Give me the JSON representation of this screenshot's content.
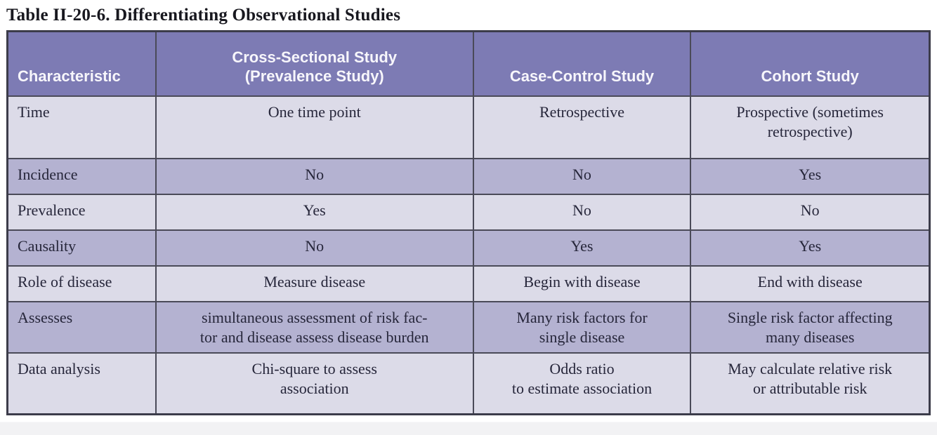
{
  "title": "Table II-20-6. Differentiating Observational Studies",
  "colors": {
    "header_bg": "#7d7bb4",
    "header_text": "#f7f6fb",
    "row_light": "#dcdbe8",
    "row_dark": "#b4b2d1",
    "border": "#4a4a58",
    "body_text": "#26263a"
  },
  "table": {
    "headers": [
      "Characteristic",
      "Cross-Sectional Study\n(Prevalence Study)",
      "Case-Control Study",
      "Cohort Study"
    ],
    "rows": [
      {
        "cells": [
          "Time",
          "One time point",
          "Retrospective",
          "Prospective (sometimes\nretrospective)"
        ]
      },
      {
        "cells": [
          "Incidence",
          "No",
          "No",
          "Yes"
        ]
      },
      {
        "cells": [
          "Prevalence",
          "Yes",
          "No",
          "No"
        ]
      },
      {
        "cells": [
          "Causality",
          "No",
          "Yes",
          "Yes"
        ]
      },
      {
        "cells": [
          "Role of disease",
          "Measure disease",
          "Begin with disease",
          "End with disease"
        ]
      },
      {
        "cells": [
          "Assesses",
          "simultaneous assessment of risk fac-\ntor and disease assess disease burden",
          "Many risk factors for\nsingle disease",
          "Single risk factor affecting\nmany diseases"
        ]
      },
      {
        "cells": [
          "Data analysis",
          "Chi-square to assess\nassociation",
          "Odds ratio\nto estimate association",
          "May calculate relative risk\nor attributable risk"
        ]
      }
    ]
  }
}
